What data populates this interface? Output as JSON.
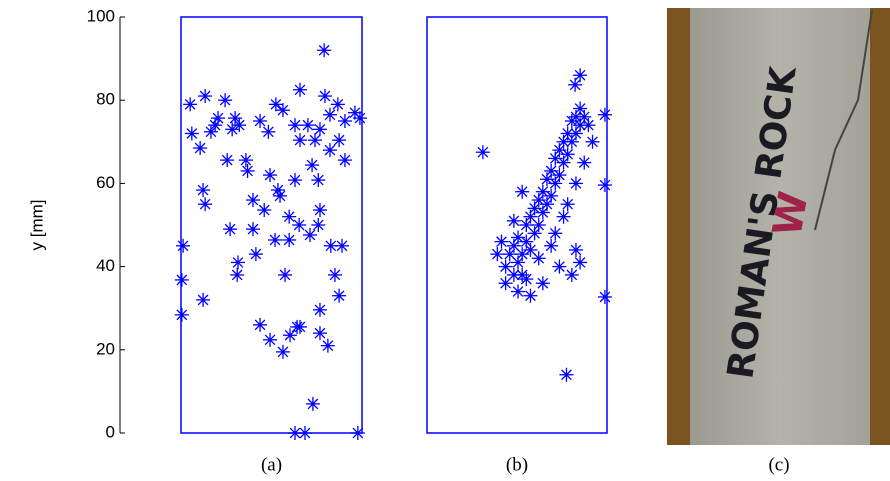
{
  "chart_data": [
    {
      "type": "scatter",
      "y_label": "y [mm]",
      "caption": "(a)",
      "color": "#0000ff",
      "xlim": [
        0,
        43.5
      ],
      "ylim": [
        0,
        100
      ],
      "yticks": [
        0,
        20,
        40,
        60,
        80,
        100
      ],
      "x": [
        0.2,
        0.2,
        0.5,
        5.3,
        2.2,
        2.6,
        4.6,
        5.8,
        8.2,
        10.6,
        12.3,
        14,
        11.1,
        15.6,
        16,
        11.8,
        13.7,
        13.5,
        18,
        17.3,
        17.3,
        5.3,
        5.8,
        19,
        21.4,
        24.5,
        26.2,
        27.9,
        28.6,
        33.4,
        33.4,
        35.3,
        38,
        38.7,
        31.7,
        27.4,
        29.8,
        42.5,
        34.4,
        25,
        21.4,
        23.8,
        26,
        28.4,
        31,
        33,
        33.4,
        33,
        31.5,
        27.4,
        23.3,
        20,
        22.6,
        26,
        36,
        37,
        21,
        22.8,
        24.5,
        27.4,
        28.6,
        30.5,
        32.2,
        34.6,
        35.8,
        37.7,
        39.4,
        41.8,
        43,
        38,
        35.8,
        33.4,
        39.4,
        28.6,
        19,
        8.9,
        13,
        7.2
      ],
      "y": [
        28.4,
        36.8,
        45,
        32,
        79,
        72,
        68.5,
        81,
        74,
        80,
        73,
        74,
        65.6,
        65.6,
        63,
        49,
        41,
        38,
        43,
        56,
        49,
        58.4,
        55,
        26,
        22.4,
        19.5,
        23.5,
        25.5,
        25.5,
        29.6,
        24,
        21,
        33,
        45,
        7,
        0,
        0,
        0,
        92,
        38,
        62,
        57,
        52,
        50,
        47.6,
        50,
        53.6,
        60.8,
        64.4,
        60.8,
        58.4,
        53.6,
        46.4,
        46.4,
        45,
        38,
        72.4,
        79,
        77.6,
        74,
        82.5,
        74,
        70.4,
        81,
        76.5,
        79,
        75,
        77,
        75.7,
        70.4,
        68,
        73,
        65.6,
        70.4,
        75,
        75.7,
        75.7,
        72.4
      ]
    },
    {
      "type": "scatter",
      "caption": "(b)",
      "color": "#0000ff",
      "xlim": [
        0,
        43.5
      ],
      "ylim": [
        0,
        100
      ],
      "x": [
        13.5,
        33.7,
        43,
        43,
        43,
        35.8,
        37,
        19,
        19,
        20,
        21,
        21,
        22,
        22,
        23,
        23,
        24,
        24,
        25,
        25,
        26,
        26,
        27,
        27,
        28,
        28,
        29,
        29,
        30,
        30,
        31,
        31,
        32,
        32,
        33,
        33,
        34,
        34,
        35,
        35,
        36,
        36,
        37,
        37,
        38,
        39,
        40,
        38,
        36,
        33,
        30,
        27,
        24,
        22,
        25,
        28,
        32,
        35,
        37,
        36,
        31,
        34,
        21,
        23,
        17,
        18
      ],
      "y": [
        67.5,
        14,
        32.7,
        59.6,
        76.5,
        83.7,
        86,
        36,
        40,
        43,
        38,
        45,
        41,
        47,
        43,
        38,
        46,
        50,
        44,
        52,
        48,
        54,
        50,
        56,
        53,
        58,
        55,
        61,
        57,
        63,
        60,
        66,
        62,
        68,
        65,
        70,
        67,
        72,
        70,
        75,
        72,
        76,
        74,
        78,
        76,
        74,
        70,
        65,
        60,
        52,
        45,
        42,
        37,
        34,
        33,
        36,
        40,
        38,
        41,
        44,
        48,
        55,
        51,
        58,
        43,
        46
      ]
    }
  ],
  "photo": {
    "caption": "(c)",
    "text": "ROMAN'S ROCK",
    "mark": "W"
  }
}
